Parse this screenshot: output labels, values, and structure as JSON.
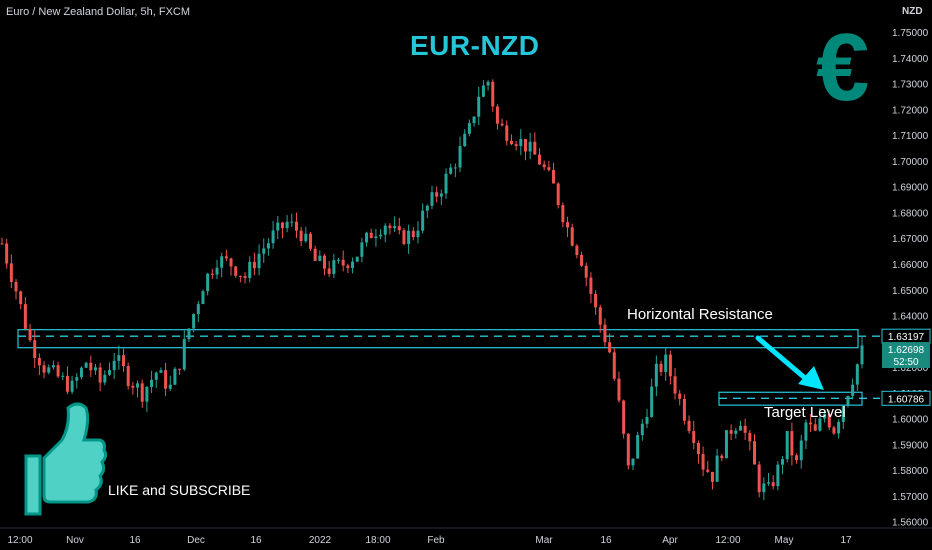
{
  "header": {
    "symbol_line": "Euro / New Zealand Dollar, 5h, FXCM"
  },
  "currency_label": "NZD",
  "title": "EUR-NZD",
  "euro_symbol": "€",
  "annotations": {
    "resistance": "Horizontal Resistance",
    "target": "Target Level",
    "cta": "LIKE and SUBSCRIBE"
  },
  "icons": {
    "brand": "euro-icon",
    "thumb": "thumbs-up-icon"
  },
  "colors": {
    "background": "#000000",
    "candle_up": "#26a69a",
    "candle_down": "#ef5350",
    "zone": "#26c6da",
    "arrow": "#00e5ff",
    "title": "#26c6da",
    "euro": "#00897b"
  },
  "price_tags": {
    "resistance": "1.63197",
    "last": "1.62698",
    "countdown": "52:50",
    "target": "1.60786"
  },
  "chart_data": {
    "type": "candlestick",
    "x_tick_labels": [
      "12:00",
      "Nov",
      "16",
      "Dec",
      "16",
      "2022",
      "18:00",
      "Feb",
      "Mar",
      "16",
      "Apr",
      "12:00",
      "May",
      "17"
    ],
    "y_ticks": [
      1.56,
      1.57,
      1.58,
      1.59,
      1.6,
      1.61,
      1.62,
      1.63,
      1.64,
      1.65,
      1.66,
      1.67,
      1.68,
      1.69,
      1.7,
      1.71,
      1.72,
      1.73,
      1.74,
      1.75
    ],
    "y_tick_labels": [
      "1.56000",
      "1.57000",
      "1.58000",
      "1.59000",
      "1.60000",
      "1.61000",
      "1.62000",
      "1.63000",
      "1.64000",
      "1.65000",
      "1.66000",
      "1.67000",
      "1.68000",
      "1.69000",
      "1.70000",
      "1.71000",
      "1.72000",
      "1.73000",
      "1.74000",
      "1.75000"
    ],
    "ylim": [
      1.5575,
      1.7625
    ],
    "price_path": [
      [
        0,
        1.668
      ],
      [
        3,
        1.65
      ],
      [
        6,
        1.63
      ],
      [
        9,
        1.62
      ],
      [
        12,
        1.616
      ],
      [
        15,
        1.612
      ],
      [
        18,
        1.622
      ],
      [
        21,
        1.614
      ],
      [
        24,
        1.624
      ],
      [
        27,
        1.616
      ],
      [
        30,
        1.61
      ],
      [
        33,
        1.618
      ],
      [
        36,
        1.612
      ],
      [
        38,
        1.622
      ],
      [
        40,
        1.635
      ],
      [
        43,
        1.652
      ],
      [
        46,
        1.662
      ],
      [
        49,
        1.66
      ],
      [
        52,
        1.655
      ],
      [
        55,
        1.664
      ],
      [
        58,
        1.671
      ],
      [
        61,
        1.676
      ],
      [
        64,
        1.672
      ],
      [
        67,
        1.661
      ],
      [
        70,
        1.658
      ],
      [
        73,
        1.66
      ],
      [
        76,
        1.664
      ],
      [
        79,
        1.672
      ],
      [
        82,
        1.676
      ],
      [
        85,
        1.67
      ],
      [
        88,
        1.672
      ],
      [
        91,
        1.682
      ],
      [
        94,
        1.69
      ],
      [
        97,
        1.7
      ],
      [
        100,
        1.712
      ],
      [
        102,
        1.726
      ],
      [
        104,
        1.731
      ],
      [
        106,
        1.714
      ],
      [
        109,
        1.71
      ],
      [
        112,
        1.706
      ],
      [
        115,
        1.7
      ],
      [
        118,
        1.69
      ],
      [
        121,
        1.674
      ],
      [
        124,
        1.662
      ],
      [
        127,
        1.642
      ],
      [
        130,
        1.626
      ],
      [
        132,
        1.605
      ],
      [
        134,
        1.58
      ],
      [
        136,
        1.592
      ],
      [
        138,
        1.604
      ],
      [
        140,
        1.618
      ],
      [
        142,
        1.622
      ],
      [
        144,
        1.612
      ],
      [
        146,
        1.602
      ],
      [
        148,
        1.594
      ],
      [
        150,
        1.582
      ],
      [
        152,
        1.578
      ],
      [
        154,
        1.588
      ],
      [
        156,
        1.596
      ],
      [
        158,
        1.6
      ],
      [
        160,
        1.588
      ],
      [
        162,
        1.574
      ],
      [
        164,
        1.572
      ],
      [
        166,
        1.58
      ],
      [
        168,
        1.592
      ],
      [
        170,
        1.582
      ],
      [
        172,
        1.598
      ],
      [
        174,
        1.594
      ],
      [
        176,
        1.602
      ],
      [
        178,
        1.596
      ],
      [
        180,
        1.606
      ],
      [
        182,
        1.616
      ],
      [
        184,
        1.626
      ]
    ],
    "zones": [
      {
        "name": "Horizontal Resistance",
        "low": 1.6275,
        "high": 1.6345,
        "level": 1.63197
      },
      {
        "name": "Target Level",
        "low": 1.6052,
        "high": 1.6102,
        "level": 1.60786
      }
    ],
    "last_price": 1.62698
  }
}
